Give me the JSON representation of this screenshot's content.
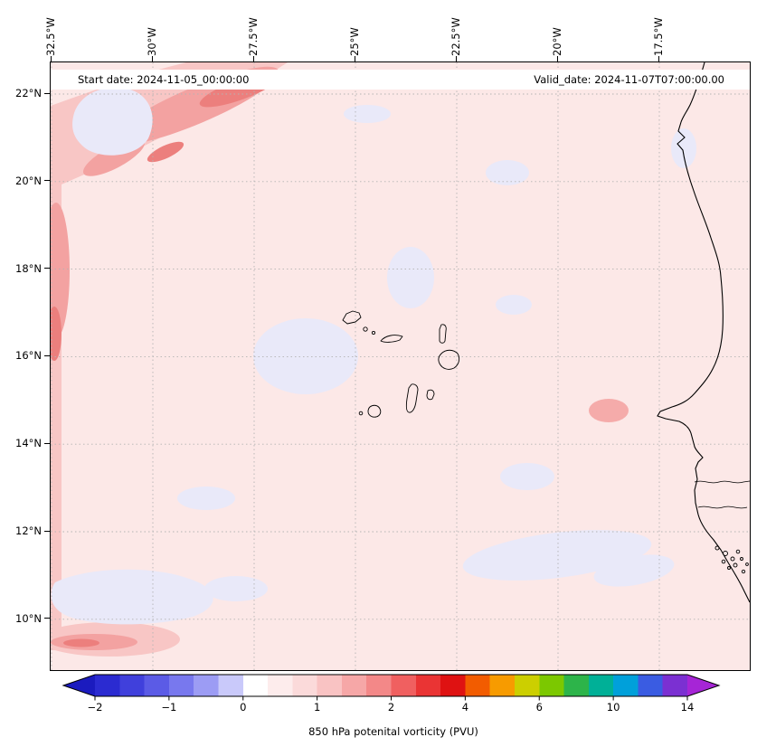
{
  "header": {
    "start_date": "Start date: 2024-11-05_00:00:00",
    "valid_date": "Valid_date: 2024-11-07T07:00:00.00"
  },
  "axes": {
    "x_ticks": [
      "32.5°W",
      "30°W",
      "27.5°W",
      "25°W",
      "22.5°W",
      "20°W",
      "17.5°W"
    ],
    "y_ticks": [
      "22°N",
      "20°N",
      "18°N",
      "16°N",
      "14°N",
      "12°N",
      "10°N"
    ]
  },
  "colorbar": {
    "label": "850 hPa potenital vorticity (PVU)",
    "ticks": [
      "−2",
      "−1",
      "0",
      "1",
      "2",
      "4",
      "6",
      "10",
      "14"
    ],
    "colors": [
      "#2b2bd1",
      "#4040dc",
      "#5b5be6",
      "#7878ee",
      "#9c9cf4",
      "#c9c9fa",
      "#ffffff",
      "#fdecec",
      "#fbdada",
      "#f9c3c3",
      "#f6a7a7",
      "#f38888",
      "#f06060",
      "#ea3434",
      "#df1212",
      "#f25c00",
      "#f79b00",
      "#cccf00",
      "#7cc800",
      "#2db44a",
      "#00b097",
      "#00a0da",
      "#3a5ce2",
      "#7b30d2"
    ],
    "end_colors": [
      "#1b1bbf",
      "#a625d6"
    ]
  },
  "colors": {
    "figure_bg": "#ffffff",
    "base_pink": "#fce8e7",
    "pink_light": "#f8c6c5",
    "pink_mid": "#f3a2a1",
    "pink_deep": "#ec7f7d",
    "lavender": "#e9e9f9",
    "salmon_spot": "#f5abaa",
    "coast": "#000000",
    "grid": "#b3b3b3",
    "strip_bg": "#ffffff"
  },
  "chart_data": {
    "type": "heatmap",
    "title": "850 hPa potenital vorticity (PVU)",
    "start_date": "2024-11-05_00:00:00",
    "valid_date": "2024-11-07T07:00:00.00",
    "projection": "lat/lon map of the Cape Verde islands and West African coast",
    "lon_ticks_deg_w": [
      32.5,
      30,
      27.5,
      25,
      22.5,
      20,
      17.5
    ],
    "lat_ticks_deg_n": [
      22,
      20,
      18,
      16,
      14,
      12,
      10
    ],
    "lon_range_deg_w": [
      32.6,
      15.2
    ],
    "lat_range_deg_n": [
      8.8,
      22.7
    ],
    "colorbar_tick_values": [
      -2,
      -1,
      0,
      1,
      2,
      4,
      6,
      10,
      14
    ],
    "units": "PVU",
    "grid": "dotted gray graticule at tick positions",
    "legend_position": "horizontal colorbar below map with pointed over/under-range extensions",
    "field_summary": [
      {
        "region": "most of ocean domain",
        "value_pvu": "0 to 0.5 (pale pink)"
      },
      {
        "region": "diagonal band from ~32.5W,20.5N to ~27W,22.5N",
        "value_pvu": "1 to 2 with red core near 2"
      },
      {
        "region": "western edge near 32.5W",
        "value_pvu": "0.5 to 1.5 strip"
      },
      {
        "region": "southwest corner ~32W,9.5N",
        "value_pvu": "1 to 1.5 streak"
      },
      {
        "region": "scattered patches centre / south / southwest",
        "value_pvu": "-0.25 to 0 (pale lavender)"
      },
      {
        "region": "near Senegal coast ~14.8N,18.9W",
        "value_pvu": "~1 small maximum"
      }
    ]
  }
}
